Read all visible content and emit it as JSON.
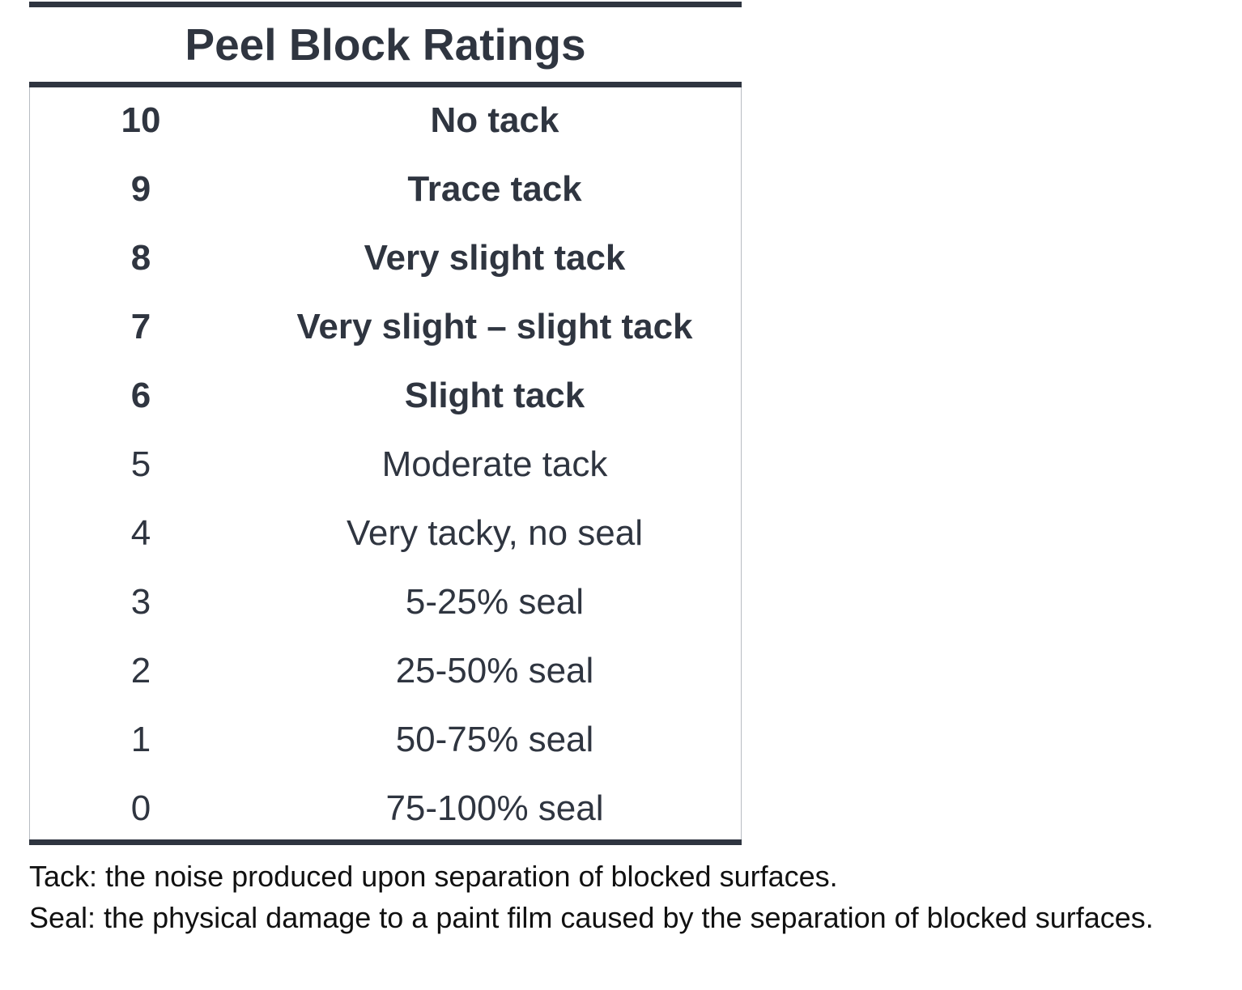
{
  "table": {
    "title": "Peel Block Ratings",
    "rows": [
      {
        "rating": "10",
        "description": "No tack",
        "bold": true
      },
      {
        "rating": "9",
        "description": "Trace tack",
        "bold": true
      },
      {
        "rating": "8",
        "description": "Very slight tack",
        "bold": true
      },
      {
        "rating": "7",
        "description": "Very slight – slight tack",
        "bold": true
      },
      {
        "rating": "6",
        "description": "Slight tack",
        "bold": true
      },
      {
        "rating": "5",
        "description": "Moderate tack",
        "bold": false
      },
      {
        "rating": "4",
        "description": "Very tacky, no seal",
        "bold": false
      },
      {
        "rating": "3",
        "description": "5-25% seal",
        "bold": false
      },
      {
        "rating": "2",
        "description": "25-50% seal",
        "bold": false
      },
      {
        "rating": "1",
        "description": "50-75% seal",
        "bold": false
      },
      {
        "rating": "0",
        "description": "75-100% seal",
        "bold": false
      }
    ]
  },
  "notes": {
    "tack": "Tack: the noise produced upon separation of blocked surfaces.",
    "seal": "Seal: the physical damage to a paint film caused by the separation of blocked surfaces."
  },
  "colors": {
    "rule": "#2f3540",
    "text": "#2f3540",
    "border": "#b8bcc2"
  }
}
